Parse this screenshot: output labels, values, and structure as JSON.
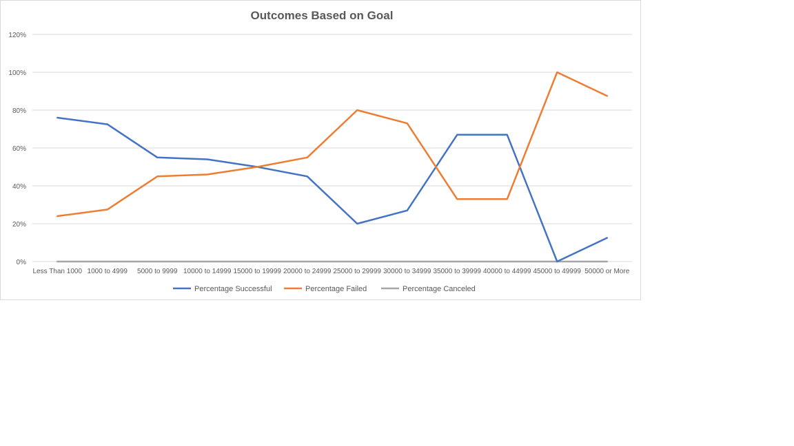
{
  "chart_data": {
    "type": "line",
    "title": "Outcomes Based on Goal",
    "xlabel": "",
    "ylabel": "",
    "ylim": [
      0,
      1.2
    ],
    "yticks": [
      "0%",
      "20%",
      "40%",
      "60%",
      "80%",
      "100%",
      "120%"
    ],
    "ytick_values": [
      0,
      0.2,
      0.4,
      0.6,
      0.8,
      1.0,
      1.2
    ],
    "grid": true,
    "legend_position": "bottom",
    "categories": [
      "Less Than 1000",
      "1000 to 4999",
      "5000 to 9999",
      "10000 to 14999",
      "15000 to 19999",
      "20000 to 24999",
      "25000 to 29999",
      "30000 to 34999",
      "35000 to 39999",
      "40000 to 44999",
      "45000 to 49999",
      "50000 or More"
    ],
    "series": [
      {
        "name": "Percentage Successful",
        "color": "#4472c4",
        "values": [
          0.76,
          0.725,
          0.55,
          0.54,
          0.5,
          0.45,
          0.2,
          0.27,
          0.67,
          0.67,
          0.0,
          0.125
        ]
      },
      {
        "name": "Percentage Failed",
        "color": "#ed7d31",
        "values": [
          0.24,
          0.275,
          0.45,
          0.46,
          0.5,
          0.55,
          0.8,
          0.73,
          0.33,
          0.33,
          1.0,
          0.875
        ]
      },
      {
        "name": "Percentage Canceled",
        "color": "#a5a5a5",
        "values": [
          0,
          0,
          0,
          0,
          0,
          0,
          0,
          0,
          0,
          0,
          0,
          0
        ]
      }
    ]
  }
}
